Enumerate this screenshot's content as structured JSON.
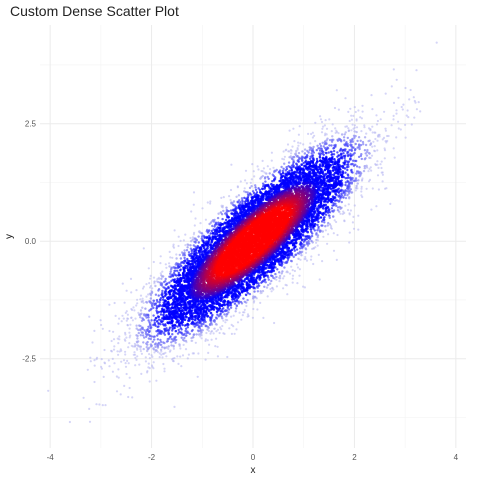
{
  "chart_data": {
    "type": "scatter",
    "title": "Custom Dense Scatter Plot",
    "xlabel": "x",
    "ylabel": "y",
    "xlim": [
      -4.2,
      4.2
    ],
    "ylim": [
      -4.4,
      4.6
    ],
    "x_ticks": [
      {
        "value": -4,
        "label": "-4"
      },
      {
        "value": -2,
        "label": "-2"
      },
      {
        "value": 0,
        "label": "0"
      },
      {
        "value": 2,
        "label": "2"
      },
      {
        "value": 4,
        "label": "4"
      }
    ],
    "y_ticks": [
      {
        "value": -2.5,
        "label": "-2.5"
      },
      {
        "value": 0,
        "label": "0.0"
      },
      {
        "value": 2.5,
        "label": "2.5"
      }
    ],
    "grid": true,
    "legend": "none",
    "point_colors": {
      "low_density": "#b3b3f0",
      "mid_density": "#0000ff",
      "high_density": "#ff0000"
    },
    "distribution": {
      "n_points": 10000,
      "x_mean": 0,
      "x_sd": 1,
      "y_mean": 0,
      "y_sd": 1,
      "correlation": 0.85
    }
  }
}
